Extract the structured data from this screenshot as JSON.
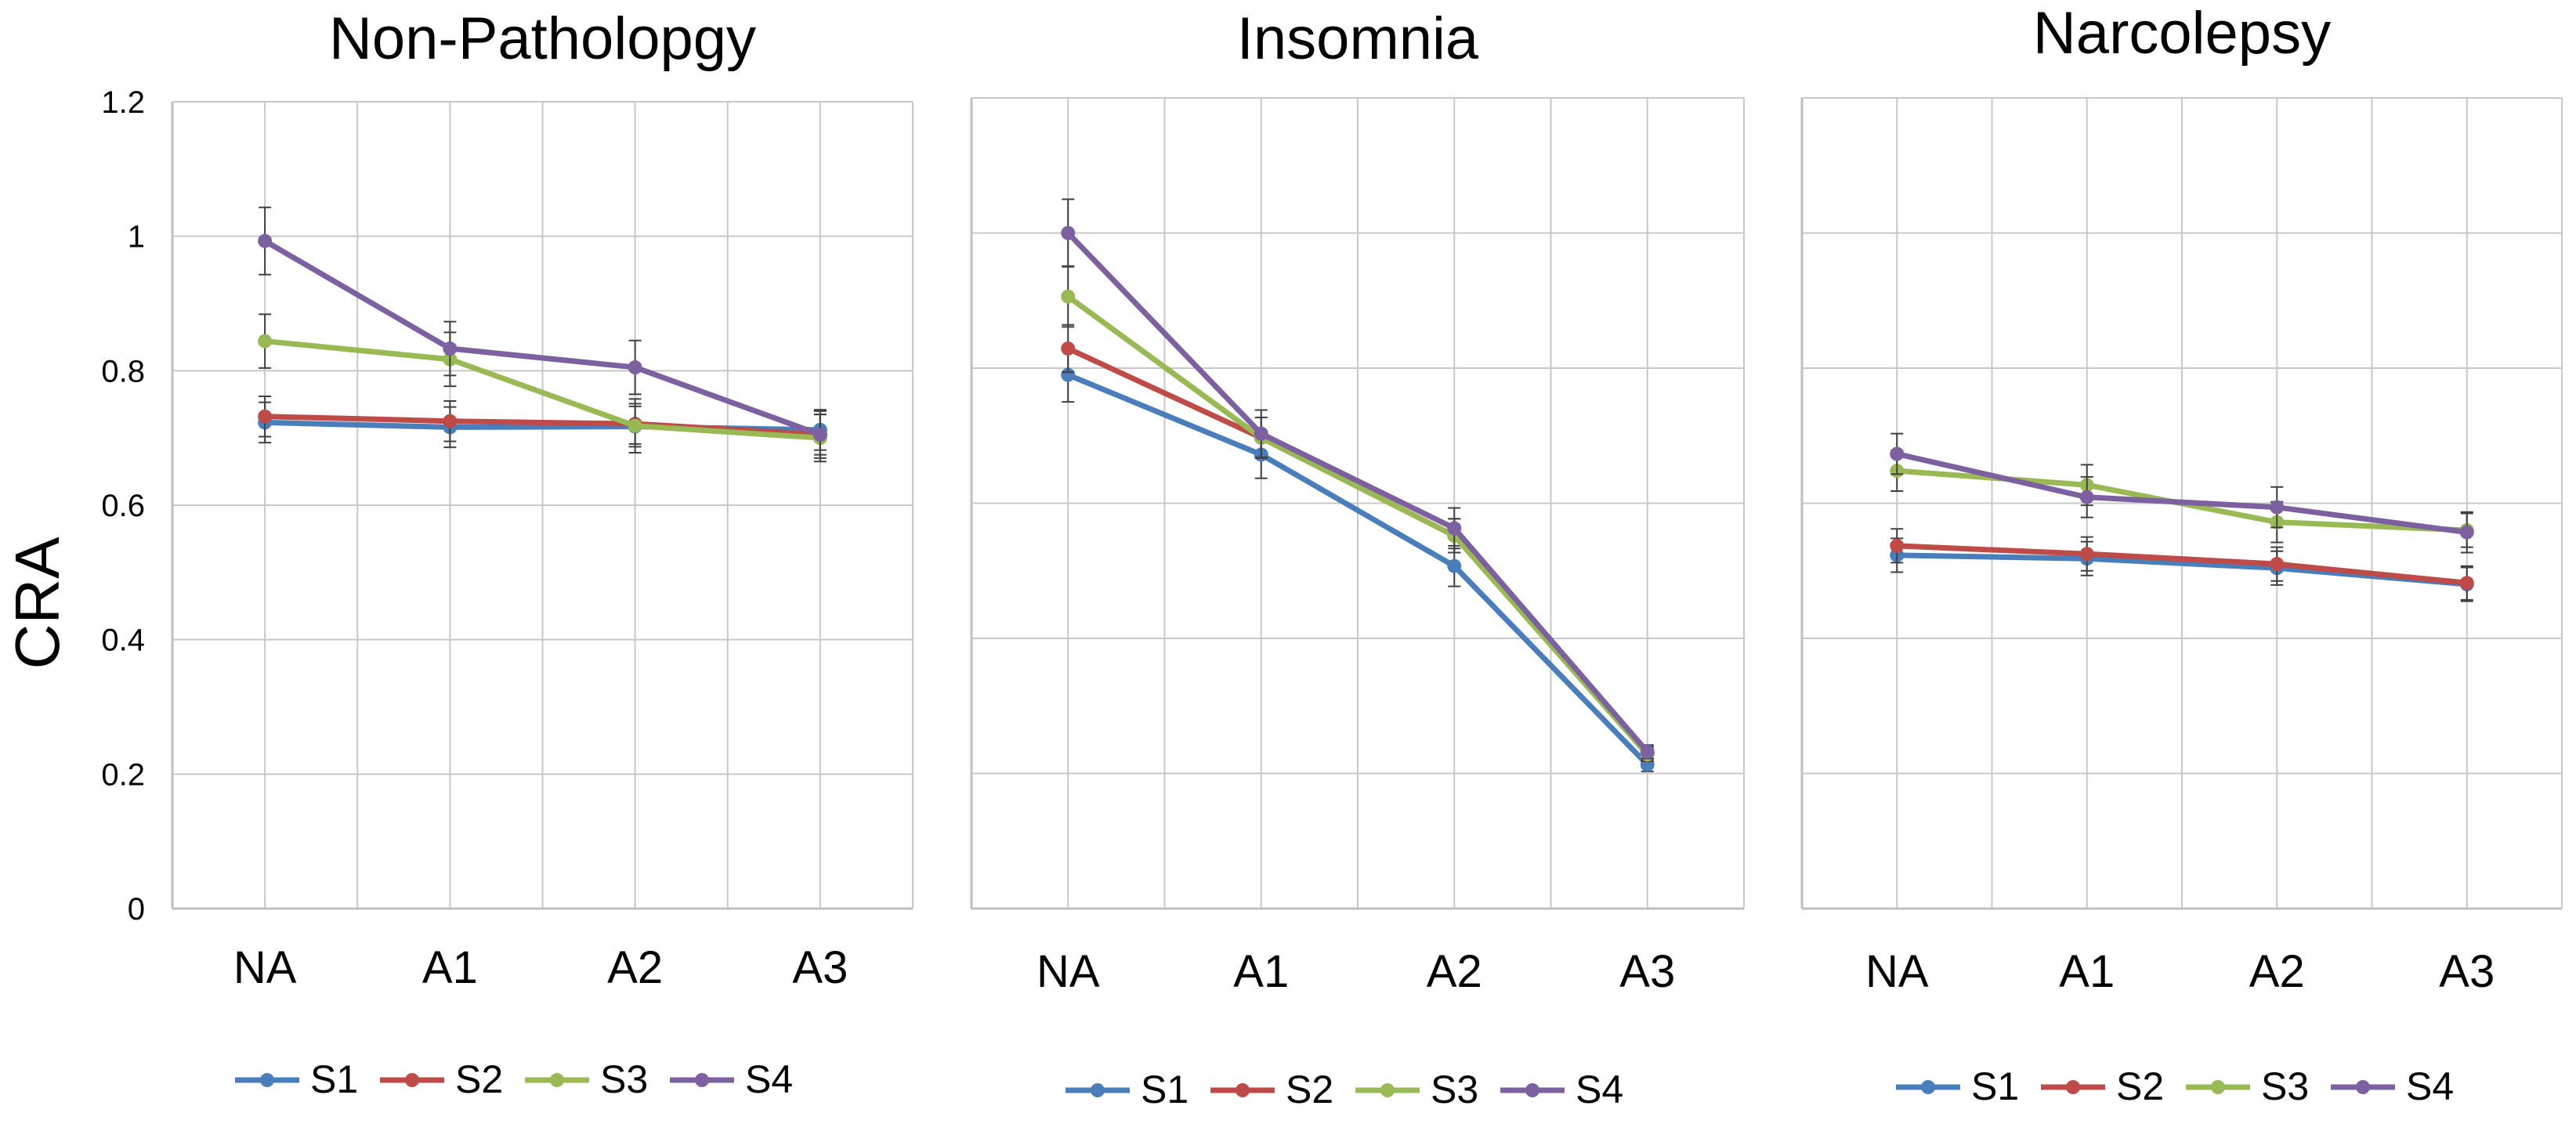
{
  "ylabel": "CRA",
  "colors": {
    "S1": "#4a7ebb",
    "S2": "#be4b48",
    "S3": "#98b954",
    "S4": "#7d60a0",
    "grid": "#c8c8c8",
    "axis": "#bfbfbf",
    "error": "#404040"
  },
  "chart_data": [
    {
      "type": "line",
      "title": "Non-Patholopgy",
      "categories": [
        "NA",
        "A1",
        "A2",
        "A3"
      ],
      "ylabel": "CRA",
      "ylim": [
        0,
        1.2
      ],
      "yticks": [
        "0",
        "0.2",
        "0.4",
        "0.6",
        "0.8",
        "1",
        "1.2"
      ],
      "legend_position": "bottom",
      "series": [
        {
          "name": "S1",
          "values": [
            0.723,
            0.716,
            0.717,
            0.712
          ],
          "errors": [
            0.03,
            0.03,
            0.03,
            0.03
          ]
        },
        {
          "name": "S2",
          "values": [
            0.732,
            0.725,
            0.721,
            0.705
          ],
          "errors": [
            0.03,
            0.03,
            0.03,
            0.03
          ]
        },
        {
          "name": "S3",
          "values": [
            0.844,
            0.817,
            0.718,
            0.7
          ],
          "errors": [
            0.04,
            0.04,
            0.04,
            0.035
          ]
        },
        {
          "name": "S4",
          "values": [
            0.993,
            0.833,
            0.805,
            0.705
          ],
          "errors": [
            0.05,
            0.04,
            0.04,
            0.035
          ]
        }
      ]
    },
    {
      "type": "line",
      "title": "Insomnia",
      "categories": [
        "NA",
        "A1",
        "A2",
        "A3"
      ],
      "ylim": [
        0,
        1.2
      ],
      "legend_position": "bottom",
      "series": [
        {
          "name": "S1",
          "values": [
            0.79,
            0.672,
            0.507,
            0.213
          ],
          "errors": [
            0.04,
            0.035,
            0.03,
            0.01
          ]
        },
        {
          "name": "S2",
          "values": [
            0.829,
            0.697,
            0.552,
            0.23
          ],
          "errors": [
            0.035,
            0.03,
            0.025,
            0.01
          ]
        },
        {
          "name": "S3",
          "values": [
            0.906,
            0.697,
            0.552,
            0.228
          ],
          "errors": [
            0.045,
            0.03,
            0.025,
            0.01
          ]
        },
        {
          "name": "S4",
          "values": [
            1.0,
            0.703,
            0.563,
            0.232
          ],
          "errors": [
            0.05,
            0.035,
            0.03,
            0.01
          ]
        }
      ]
    },
    {
      "type": "line",
      "title": "Narcolepsy",
      "categories": [
        "NA",
        "A1",
        "A2",
        "A3"
      ],
      "ylim": [
        0,
        1.2
      ],
      "legend_position": "bottom",
      "series": [
        {
          "name": "S1",
          "values": [
            0.523,
            0.518,
            0.504,
            0.48
          ],
          "errors": [
            0.025,
            0.025,
            0.025,
            0.025
          ]
        },
        {
          "name": "S2",
          "values": [
            0.537,
            0.525,
            0.51,
            0.482
          ],
          "errors": [
            0.025,
            0.025,
            0.025,
            0.025
          ]
        },
        {
          "name": "S3",
          "values": [
            0.648,
            0.627,
            0.572,
            0.56
          ],
          "errors": [
            0.03,
            0.03,
            0.03,
            0.025
          ]
        },
        {
          "name": "S4",
          "values": [
            0.673,
            0.609,
            0.594,
            0.557
          ],
          "errors": [
            0.03,
            0.03,
            0.03,
            0.03
          ]
        }
      ]
    }
  ]
}
